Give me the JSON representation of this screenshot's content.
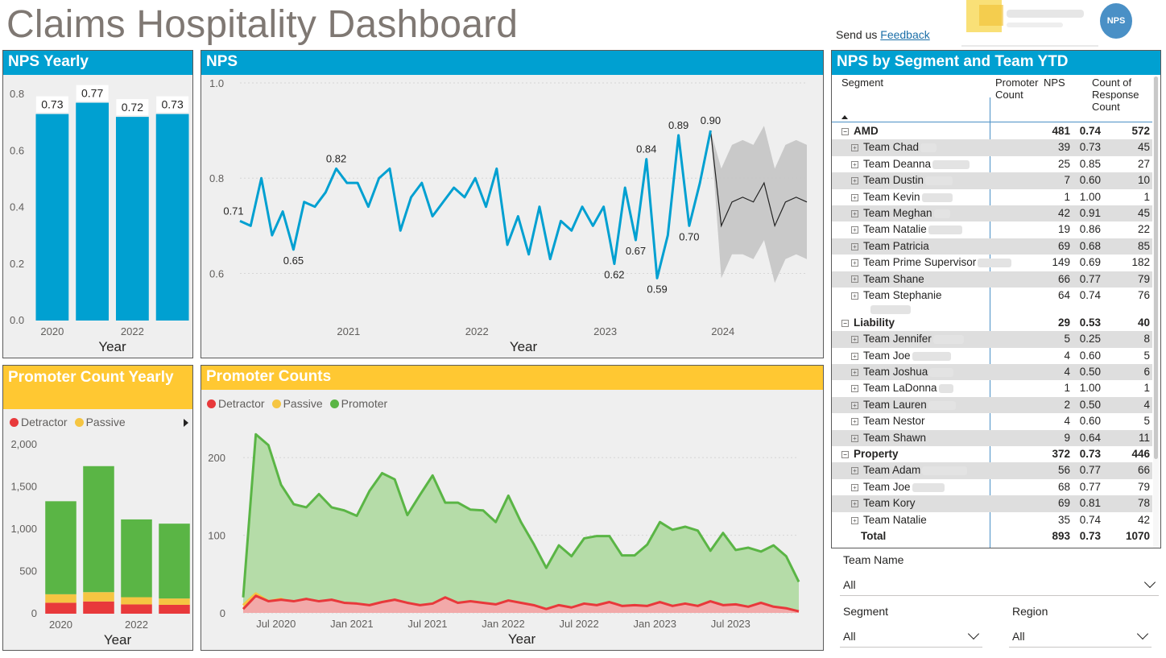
{
  "page": {
    "title": "Claims Hospitality Dashboard",
    "feedback_prefix": "Send us",
    "feedback_link": "Feedback",
    "badge": "NPS"
  },
  "cards": {
    "nps_yearly": "NPS Yearly",
    "nps": "NPS",
    "promoter_yearly": "Promoter Count Yearly",
    "promoter_counts": "Promoter Counts",
    "matrix": "NPS by Segment and Team YTD"
  },
  "colors": {
    "blue": "#00a0d1",
    "yellow": "#ffc832",
    "detractor": "#e8393b",
    "passive": "#f5c542",
    "promoter": "#5ab545",
    "forecast_band": "#c6c6c6"
  },
  "chart_data": [
    {
      "id": "nps_yearly",
      "type": "bar",
      "categories": [
        "2020",
        "2021",
        "2022",
        "2023"
      ],
      "x_tick_labels": [
        "2020",
        "",
        "2022",
        ""
      ],
      "values": [
        0.73,
        0.77,
        0.72,
        0.73
      ],
      "data_labels": [
        "0.73",
        "0.77",
        "0.72",
        "0.73"
      ],
      "xlabel": "Year",
      "ylim": [
        0,
        0.8
      ],
      "y_ticks": [
        "0.0",
        "0.2",
        "0.4",
        "0.6",
        "0.8"
      ]
    },
    {
      "id": "nps",
      "type": "line",
      "xlabel": "Year",
      "ylim": [
        0.55,
        1.0
      ],
      "y_ticks": [
        "0.6",
        "0.8",
        "1.0"
      ],
      "x_ticks": [
        "2021",
        "2022",
        "2023",
        "2024"
      ],
      "values": [
        0.71,
        0.7,
        0.8,
        0.68,
        0.73,
        0.65,
        0.75,
        0.74,
        0.77,
        0.82,
        0.79,
        0.79,
        0.74,
        0.8,
        0.82,
        0.69,
        0.76,
        0.79,
        0.72,
        0.75,
        0.78,
        0.76,
        0.8,
        0.74,
        0.82,
        0.66,
        0.72,
        0.64,
        0.74,
        0.63,
        0.71,
        0.69,
        0.74,
        0.7,
        0.74,
        0.62,
        0.78,
        0.67,
        0.84,
        0.59,
        0.68,
        0.89,
        0.7,
        0.79,
        0.9
      ],
      "data_labels": [
        [
          "0.71",
          0
        ],
        [
          "0.65",
          5
        ],
        [
          "0.82",
          9
        ],
        [
          "0.62",
          35
        ],
        [
          "0.67",
          37
        ],
        [
          "0.84",
          38
        ],
        [
          "0.59",
          39
        ],
        [
          "0.89",
          41
        ],
        [
          "0.70",
          42
        ],
        [
          "0.90",
          44
        ]
      ],
      "forecast": {
        "values": [
          0.9,
          0.7,
          0.75,
          0.76,
          0.75,
          0.79,
          0.7,
          0.75,
          0.76,
          0.75
        ],
        "upper": [
          0.9,
          0.82,
          0.87,
          0.88,
          0.87,
          0.91,
          0.82,
          0.87,
          0.88,
          0.87
        ],
        "lower": [
          0.9,
          0.59,
          0.64,
          0.64,
          0.63,
          0.67,
          0.58,
          0.63,
          0.64,
          0.63
        ]
      }
    },
    {
      "id": "promoter_yearly",
      "type": "bar",
      "categories": [
        "2020",
        "2021",
        "2022",
        "2023"
      ],
      "x_tick_labels": [
        "2020",
        "",
        "2022",
        ""
      ],
      "legend": [
        "Detractor",
        "Passive"
      ],
      "series": [
        {
          "name": "Detractor",
          "values": [
            130,
            145,
            110,
            105
          ]
        },
        {
          "name": "Passive",
          "values": [
            100,
            110,
            85,
            75
          ]
        },
        {
          "name": "Promoter",
          "values": [
            1100,
            1490,
            920,
            885
          ]
        }
      ],
      "xlabel": "Year",
      "ylim": [
        0,
        2000
      ],
      "y_ticks": [
        "0",
        "500",
        "1,000",
        "1,500",
        "2,000"
      ]
    },
    {
      "id": "promoter_counts",
      "type": "area",
      "legend": [
        "Detractor",
        "Passive",
        "Promoter"
      ],
      "xlabel": "Year",
      "ylim": [
        0,
        250
      ],
      "y_ticks": [
        "0",
        "100",
        "200"
      ],
      "x_ticks": [
        "Jul 2020",
        "Jan 2021",
        "Jul 2021",
        "Jan 2022",
        "Jul 2022",
        "Jan 2023",
        "Jul 2023"
      ],
      "series": [
        {
          "name": "Detractor",
          "values": [
            5,
            22,
            15,
            17,
            15,
            18,
            15,
            17,
            13,
            12,
            10,
            14,
            17,
            13,
            10,
            12,
            20,
            13,
            15,
            13,
            11,
            16,
            13,
            10,
            5,
            10,
            7,
            12,
            10,
            14,
            9,
            10,
            9,
            14,
            9,
            12,
            9,
            15,
            10,
            11,
            8,
            13,
            8,
            6,
            2
          ]
        },
        {
          "name": "Passive",
          "values": [
            10,
            25,
            15,
            18,
            12,
            12,
            14,
            10,
            6,
            6,
            4,
            8,
            5,
            5,
            6,
            5,
            14,
            6,
            8,
            5,
            4,
            4,
            6,
            3,
            3,
            4,
            3,
            5,
            4,
            4,
            3,
            5,
            5,
            4,
            3,
            4,
            3,
            7,
            4,
            3,
            4,
            5,
            4,
            3,
            2
          ]
        },
        {
          "name": "Promoter",
          "values": [
            20,
            230,
            216,
            165,
            140,
            136,
            153,
            136,
            132,
            125,
            157,
            180,
            172,
            126,
            152,
            177,
            142,
            142,
            133,
            132,
            117,
            151,
            117,
            89,
            58,
            87,
            73,
            96,
            99,
            99,
            74,
            74,
            88,
            117,
            107,
            111,
            106,
            80,
            103,
            81,
            84,
            79,
            87,
            73,
            40
          ]
        }
      ]
    }
  ],
  "matrix": {
    "columns": [
      "Segment",
      "Promoter Count",
      "NPS",
      "Count of Response Count"
    ],
    "rows": [
      {
        "type": "segment",
        "label": "AMD",
        "promoter": "481",
        "nps": "0.74",
        "count": "572"
      },
      {
        "type": "team",
        "label": "Team Chad",
        "promoter": "39",
        "nps": "0.73",
        "count": "45"
      },
      {
        "type": "team",
        "label": "Team Deanna",
        "promoter": "25",
        "nps": "0.85",
        "count": "27"
      },
      {
        "type": "team",
        "label": "Team Dustin",
        "promoter": "7",
        "nps": "0.60",
        "count": "10"
      },
      {
        "type": "team",
        "label": "Team Kevin",
        "promoter": "1",
        "nps": "1.00",
        "count": "1"
      },
      {
        "type": "team",
        "label": "Team Meghan",
        "promoter": "42",
        "nps": "0.91",
        "count": "45"
      },
      {
        "type": "team",
        "label": "Team Natalie",
        "promoter": "19",
        "nps": "0.86",
        "count": "22"
      },
      {
        "type": "team",
        "label": "Team Patricia",
        "promoter": "69",
        "nps": "0.68",
        "count": "85"
      },
      {
        "type": "team",
        "label": "Team Prime Supervisor",
        "promoter": "149",
        "nps": "0.69",
        "count": "182"
      },
      {
        "type": "team",
        "label": "Team Shane",
        "promoter": "66",
        "nps": "0.77",
        "count": "79"
      },
      {
        "type": "team2",
        "label": "Team Stephanie",
        "promoter": "64",
        "nps": "0.74",
        "count": "76"
      },
      {
        "type": "segment",
        "label": "Liability",
        "promoter": "29",
        "nps": "0.53",
        "count": "40"
      },
      {
        "type": "team",
        "label": "Team Jennifer",
        "promoter": "5",
        "nps": "0.25",
        "count": "8"
      },
      {
        "type": "team",
        "label": "Team Joe",
        "promoter": "4",
        "nps": "0.60",
        "count": "5"
      },
      {
        "type": "team",
        "label": "Team Joshua",
        "promoter": "4",
        "nps": "0.50",
        "count": "6"
      },
      {
        "type": "team",
        "label": "Team LaDonna",
        "promoter": "1",
        "nps": "1.00",
        "count": "1"
      },
      {
        "type": "team",
        "label": "Team Lauren",
        "promoter": "2",
        "nps": "0.50",
        "count": "4"
      },
      {
        "type": "team",
        "label": "Team Nestor",
        "promoter": "4",
        "nps": "0.60",
        "count": "5"
      },
      {
        "type": "team",
        "label": "Team Shawn",
        "promoter": "9",
        "nps": "0.64",
        "count": "11"
      },
      {
        "type": "segment",
        "label": "Property",
        "promoter": "372",
        "nps": "0.73",
        "count": "446"
      },
      {
        "type": "team",
        "label": "Team Adam",
        "promoter": "56",
        "nps": "0.77",
        "count": "66"
      },
      {
        "type": "team",
        "label": "Team Joe",
        "promoter": "68",
        "nps": "0.77",
        "count": "79"
      },
      {
        "type": "team",
        "label": "Team Kory",
        "promoter": "69",
        "nps": "0.81",
        "count": "78"
      },
      {
        "type": "team",
        "label": "Team Natalie",
        "promoter": "35",
        "nps": "0.74",
        "count": "42"
      },
      {
        "type": "total",
        "label": "Total",
        "promoter": "893",
        "nps": "0.73",
        "count": "1070"
      }
    ]
  },
  "slicers": {
    "team_name": {
      "label": "Team Name",
      "value": "All"
    },
    "segment": {
      "label": "Segment",
      "value": "All"
    },
    "region": {
      "label": "Region",
      "value": "All"
    }
  }
}
